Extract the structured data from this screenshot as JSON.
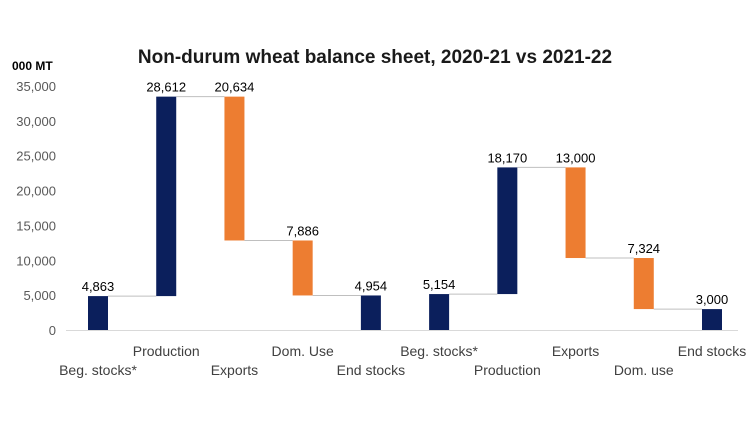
{
  "chart_data": {
    "type": "bar",
    "subtype": "waterfall",
    "title": "Non-durum wheat balance sheet, 2020-21 vs 2021-22",
    "unit_label": "000 MT",
    "ylim": [
      0,
      35000
    ],
    "yticks": [
      0,
      5000,
      10000,
      15000,
      20000,
      25000,
      30000,
      35000
    ],
    "ytick_labels": [
      "0",
      "5,000",
      "10,000",
      "15,000",
      "20,000",
      "25,000",
      "30,000",
      "35,000"
    ],
    "series_colors": {
      "supply": "#0b1f5c",
      "use": "#ed7d31",
      "connector": "#bfbfbf",
      "axis": "#d9d9d9"
    },
    "bars": [
      {
        "category": "Beg. stocks*",
        "value": 4863,
        "label": "4,863",
        "kind": "supply",
        "base": 0,
        "top": 4863,
        "label_row": "lower"
      },
      {
        "category": "Production",
        "value": 28612,
        "label": "28,612",
        "kind": "supply",
        "base": 4863,
        "top": 33475,
        "label_row": "upper"
      },
      {
        "category": "Exports",
        "value": 20634,
        "label": "20,634",
        "kind": "use",
        "base": 12841,
        "top": 33475,
        "label_row": "lower"
      },
      {
        "category": "Dom. Use",
        "value": 7886,
        "label": "7,886",
        "kind": "use",
        "base": 4955,
        "top": 12841,
        "label_row": "upper"
      },
      {
        "category": "End stocks",
        "value": 4954,
        "label": "4,954",
        "kind": "supply",
        "base": 0,
        "top": 4954,
        "label_row": "lower"
      },
      {
        "category": "Beg. stocks*",
        "value": 5154,
        "label": "5,154",
        "kind": "supply",
        "base": 0,
        "top": 5154,
        "label_row": "upper"
      },
      {
        "category": "Production",
        "value": 18170,
        "label": "18,170",
        "kind": "supply",
        "base": 5154,
        "top": 23324,
        "label_row": "lower"
      },
      {
        "category": "Exports",
        "value": 13000,
        "label": "13,000",
        "kind": "use",
        "base": 10324,
        "top": 23324,
        "label_row": "upper"
      },
      {
        "category": "Dom. use",
        "value": 7324,
        "label": "7,324",
        "kind": "use",
        "base": 3000,
        "top": 10324,
        "label_row": "lower"
      },
      {
        "category": "End stocks",
        "value": 3000,
        "label": "3,000",
        "kind": "supply",
        "base": 0,
        "top": 3000,
        "label_row": "upper"
      }
    ]
  }
}
